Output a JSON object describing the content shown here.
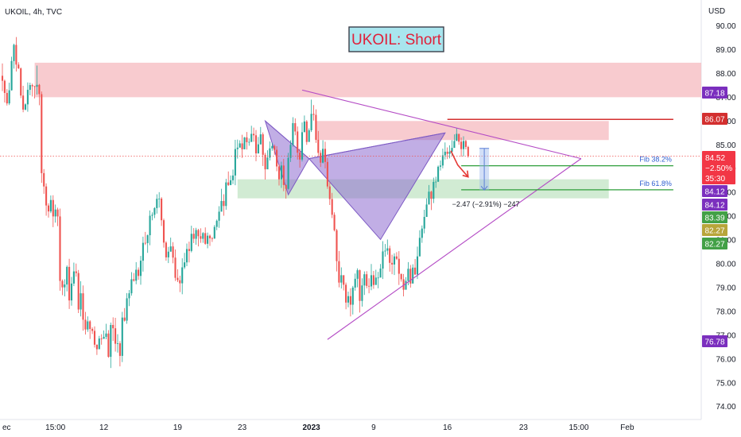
{
  "header": {
    "symbol": "UKOIL, 4h, TVC",
    "currency": "USD"
  },
  "idea_title": "UKOIL: Short",
  "colors": {
    "up": "#26a69a",
    "down": "#ef5350",
    "zone_red": "#f6b9bf",
    "zone_green": "#c6e6c8",
    "pattern": "#8e6bd0",
    "triangle": "#b44bc5",
    "resistance": "#d32f2f",
    "fib": "#2e9e3a",
    "arrow": "#e53935",
    "measure": "#5c7fd6"
  },
  "chart_data": {
    "type": "candlestick",
    "title": "UKOIL: Short",
    "ylabel": "USD",
    "y_ticks": [
      74.0,
      75.0,
      76.0,
      77.0,
      78.0,
      79.0,
      80.0,
      81.0,
      82.0,
      83.0,
      84.0,
      85.0,
      86.0,
      87.0,
      88.0,
      89.0,
      90.0
    ],
    "ylim": [
      73.7,
      91.0
    ],
    "x_ticks": [
      {
        "label": "ec",
        "idx": 0
      },
      {
        "label": "15:00",
        "idx": 23
      },
      {
        "label": "12",
        "idx": 44
      },
      {
        "label": "19",
        "idx": 76
      },
      {
        "label": "23",
        "idx": 104
      },
      {
        "label": "2023",
        "idx": 134
      },
      {
        "label": "9",
        "idx": 161
      },
      {
        "label": "16",
        "idx": 193
      },
      {
        "label": "23",
        "idx": 226
      },
      {
        "label": "15:00",
        "idx": 250
      },
      {
        "label": "Feb",
        "idx": 271
      }
    ],
    "x_count": 308,
    "price_levels": [
      {
        "label": "87.18",
        "value": 87.18,
        "color": "#7b2fbe"
      },
      {
        "label": "86.07",
        "value": 86.07,
        "color": "#d32f2f"
      },
      {
        "label": "84.12",
        "value": 84.12,
        "color": "#7b2fbe"
      },
      {
        "label": "84.12",
        "value": 84.12,
        "color": "#7b2fbe"
      },
      {
        "label": "83.39",
        "value": 83.39,
        "color": "#43a047"
      },
      {
        "label": "82.27",
        "value": 82.27,
        "color": "#b8a53a"
      },
      {
        "label": "82.27",
        "value": 82.27,
        "color": "#43a047"
      },
      {
        "label": "76.78",
        "value": 76.78,
        "color": "#7b2fbe"
      }
    ],
    "last_price": {
      "price": "84.52",
      "change": "−2.50%",
      "countdown": "35:30",
      "value": 84.52
    },
    "zones": [
      {
        "kind": "resistance",
        "from_idx": 14,
        "to_idx": 308,
        "low": 87.0,
        "high": 88.45
      },
      {
        "kind": "resistance",
        "from_idx": 136,
        "to_idx": 263,
        "low": 85.2,
        "high": 86.0
      },
      {
        "kind": "support",
        "from_idx": 102,
        "to_idx": 263,
        "low": 82.75,
        "high": 83.55
      }
    ],
    "resistance_line": {
      "from_idx": 193,
      "to_idx": 291,
      "value": 86.07
    },
    "fib_levels": [
      {
        "label": "Fib 38.2%",
        "value": 84.12,
        "from_idx": 199,
        "to_idx": 291
      },
      {
        "label": "Fib 61.8%",
        "value": 83.11,
        "from_idx": 199,
        "to_idx": 291
      }
    ],
    "triangle": [
      {
        "idx": 130,
        "value": 87.3
      },
      {
        "idx": 251,
        "value": 84.42
      },
      {
        "idx": 141,
        "value": 76.82
      }
    ],
    "pattern_points": [
      {
        "idx": 114,
        "value": 86.0
      },
      {
        "idx": 124,
        "value": 82.9
      },
      {
        "idx": 133,
        "value": 84.42
      },
      {
        "idx": 164,
        "value": 81.02
      },
      {
        "idx": 192,
        "value": 85.5
      }
    ],
    "projection": {
      "from_idx": 209,
      "top": 84.85,
      "bottom": 83.1,
      "label": "−2.47 (−2.91%) −247"
    },
    "candles": [
      [
        87.9,
        87.69,
        88.42,
        87.26
      ],
      [
        87.69,
        87.18,
        87.74,
        86.78
      ],
      [
        87.18,
        86.74,
        87.34,
        86.65
      ],
      [
        86.74,
        87.29,
        87.61,
        86.67
      ],
      [
        87.29,
        88.52,
        88.7,
        87.28
      ],
      [
        88.52,
        89.2,
        89.25,
        88.2
      ],
      [
        89.2,
        88.37,
        89.53,
        88.08
      ],
      [
        88.37,
        88.21,
        88.47,
        88.19
      ],
      [
        88.21,
        87.07,
        88.25,
        86.96
      ],
      [
        87.07,
        86.48,
        87.48,
        86.37
      ],
      [
        86.48,
        86.7,
        86.74,
        86.45
      ],
      [
        86.7,
        87.31,
        87.62,
        86.39
      ],
      [
        87.31,
        87.51,
        87.61,
        87.08
      ],
      [
        87.51,
        87.46,
        87.57,
        87.03
      ],
      [
        87.46,
        87.44,
        87.48,
        86.95
      ],
      [
        87.44,
        87.52,
        88.33,
        87.11
      ],
      [
        87.52,
        87.13,
        87.56,
        86.66
      ],
      [
        87.13,
        83.81,
        87.24,
        83.4
      ],
      [
        83.81,
        83.25,
        83.98,
        82.94
      ],
      [
        83.25,
        82.45,
        83.38,
        82.02
      ],
      [
        82.45,
        82.2,
        82.54,
        81.94
      ],
      [
        82.2,
        82.68,
        82.87,
        82.13
      ],
      [
        82.68,
        81.99,
        82.88,
        81.54
      ],
      [
        81.99,
        82.28,
        82.49,
        81.73
      ],
      [
        82.28,
        81.99,
        82.36,
        81.58
      ],
      [
        81.99,
        79.28,
        82.32,
        78.87
      ],
      [
        79.28,
        79.01,
        79.34,
        78.68
      ],
      [
        79.01,
        79.13,
        79.35,
        78.63
      ],
      [
        79.13,
        79.87,
        79.93,
        78.84
      ],
      [
        79.87,
        78.46,
        80.21,
        78.1
      ],
      [
        78.46,
        79.17,
        79.45,
        78.24
      ],
      [
        79.17,
        79.68,
        80.05,
        79.06
      ],
      [
        79.68,
        79.61,
        80.01,
        79.46
      ],
      [
        79.61,
        78.08,
        79.74,
        77.93
      ],
      [
        78.08,
        78.76,
        79.27,
        77.79
      ],
      [
        78.76,
        77.65,
        79.09,
        77.19
      ],
      [
        77.65,
        77.24,
        77.98,
        77.03
      ],
      [
        77.24,
        77.58,
        77.79,
        77.14
      ],
      [
        77.58,
        77.26,
        77.63,
        76.84
      ],
      [
        77.26,
        77.18,
        77.33,
        77.05
      ],
      [
        77.18,
        76.6,
        77.37,
        76.48
      ],
      [
        76.6,
        76.41,
        76.61,
        76.17
      ],
      [
        76.41,
        76.86,
        76.97,
        76.47
      ],
      [
        76.86,
        76.85,
        77.04,
        76.6
      ],
      [
        76.85,
        76.93,
        77.2,
        76.84
      ],
      [
        76.93,
        77.07,
        77.48,
        76.83
      ],
      [
        77.07,
        76.09,
        77.21,
        76.05
      ],
      [
        76.09,
        77.43,
        77.53,
        75.62
      ],
      [
        77.43,
        77.29,
        77.75,
        76.76
      ],
      [
        77.29,
        76.64,
        77.73,
        76.31
      ],
      [
        76.64,
        76.66,
        77.04,
        76.27
      ],
      [
        76.66,
        76.13,
        76.75,
        75.69
      ],
      [
        76.13,
        77.74,
        77.98,
        75.87
      ],
      [
        77.74,
        77.61,
        78.14,
        77.57
      ],
      [
        77.61,
        78.55,
        78.77,
        77.48
      ],
      [
        78.55,
        78.76,
        78.9,
        78.22
      ],
      [
        78.76,
        79.35,
        79.65,
        78.66
      ],
      [
        79.35,
        79.29,
        79.61,
        79.25
      ],
      [
        79.29,
        79.75,
        80.07,
        79.14
      ],
      [
        79.75,
        79.49,
        79.85,
        79.33
      ],
      [
        79.49,
        80.13,
        80.33,
        79.12
      ],
      [
        80.13,
        80.88,
        81.14,
        79.67
      ],
      [
        80.88,
        80.87,
        81.34,
        80.79
      ],
      [
        80.87,
        81.2,
        81.23,
        80.46
      ],
      [
        81.2,
        82.02,
        82.24,
        80.78
      ],
      [
        82.02,
        82.06,
        82.16,
        81.83
      ],
      [
        82.06,
        82.34,
        82.38,
        81.92
      ],
      [
        82.34,
        82.73,
        82.92,
        82.11
      ],
      [
        82.73,
        82.74,
        83.01,
        82.36
      ],
      [
        82.74,
        81.83,
        82.8,
        81.59
      ],
      [
        81.83,
        80.89,
        81.9,
        80.68
      ],
      [
        80.89,
        80.27,
        80.95,
        80.13
      ],
      [
        80.27,
        80.51,
        80.71,
        80.03
      ],
      [
        80.51,
        80.73,
        81.1,
        80.51
      ],
      [
        80.73,
        80.26,
        80.91,
        80.02
      ],
      [
        80.26,
        79.41,
        80.6,
        79.28
      ],
      [
        79.41,
        79.31,
        79.77,
        79.23
      ],
      [
        79.31,
        79.18,
        79.5,
        78.81
      ],
      [
        79.18,
        79.85,
        80.23,
        78.72
      ],
      [
        79.85,
        80.06,
        80.46,
        79.78
      ],
      [
        80.06,
        80.62,
        80.85,
        79.9
      ],
      [
        80.62,
        80.54,
        80.93,
        80.06
      ],
      [
        80.54,
        81.26,
        81.6,
        80.48
      ],
      [
        81.26,
        81.05,
        81.5,
        80.87
      ],
      [
        81.05,
        81.42,
        81.51,
        80.8
      ],
      [
        81.42,
        81.16,
        81.47,
        80.73
      ],
      [
        81.16,
        81.05,
        81.49,
        80.88
      ],
      [
        81.05,
        81.29,
        81.33,
        80.88
      ],
      [
        81.29,
        80.84,
        81.53,
        80.8
      ],
      [
        80.84,
        81.18,
        81.31,
        80.65
      ],
      [
        81.18,
        81.07,
        81.23,
        80.75
      ],
      [
        81.07,
        81.06,
        81.13,
        80.92
      ],
      [
        81.06,
        81.55,
        81.63,
        81.05
      ],
      [
        81.55,
        81.81,
        81.86,
        81.41
      ],
      [
        81.81,
        82.19,
        82.42,
        81.51
      ],
      [
        82.19,
        82.64,
        83.15,
        82.56
      ],
      [
        82.64,
        82.43,
        82.92,
        82.02
      ],
      [
        82.43,
        83.42,
        83.57,
        82.27
      ],
      [
        83.42,
        83.31,
        83.88,
        83.27
      ],
      [
        83.31,
        83.51,
        83.71,
        83.3
      ],
      [
        83.51,
        83.71,
        83.96,
        83.35
      ],
      [
        83.71,
        84.82,
        85.21,
        83.3
      ],
      [
        84.82,
        84.88,
        85.22,
        84.42
      ],
      [
        84.88,
        85.06,
        85.19,
        84.93
      ],
      [
        85.06,
        84.81,
        85.42,
        84.45
      ],
      [
        84.81,
        85.31,
        85.33,
        84.89
      ],
      [
        85.31,
        85.11,
        85.54,
        84.8
      ],
      [
        85.11,
        85.12,
        85.27,
        84.96
      ],
      [
        85.12,
        85.46,
        85.8,
        85.15
      ],
      [
        85.46,
        85.4,
        85.72,
        85.13
      ],
      [
        85.4,
        84.64,
        85.62,
        84.31
      ],
      [
        84.64,
        85.02,
        85.33,
        84.63
      ],
      [
        85.02,
        85.44,
        85.75,
        85.01
      ],
      [
        85.44,
        84.58,
        85.52,
        84.11
      ],
      [
        84.58,
        83.97,
        84.66,
        83.54
      ],
      [
        83.97,
        84.46,
        84.77,
        84.01
      ],
      [
        84.46,
        84.85,
        85.14,
        84.34
      ],
      [
        84.85,
        84.95,
        85.08,
        84.75
      ],
      [
        84.95,
        84.79,
        85.01,
        84.58
      ],
      [
        84.79,
        84.09,
        84.94,
        83.89
      ],
      [
        84.09,
        83.55,
        84.19,
        83.29
      ],
      [
        83.55,
        84.13,
        84.29,
        83.19
      ],
      [
        84.13,
        83.31,
        84.41,
        83.05
      ],
      [
        83.31,
        83.15,
        83.33,
        82.74
      ],
      [
        83.15,
        84.45,
        84.66,
        83.12
      ],
      [
        84.45,
        85.0,
        85.19,
        84.28
      ],
      [
        85.0,
        85.91,
        86.16,
        84.92
      ],
      [
        85.91,
        85.56,
        86.11,
        85.4
      ],
      [
        85.56,
        84.67,
        85.77,
        84.38
      ],
      [
        84.67,
        84.38,
        84.84,
        84.04
      ],
      [
        84.38,
        85.53,
        85.94,
        84.3
      ],
      [
        85.53,
        85.98,
        86.23,
        85.79
      ],
      [
        85.98,
        85.12,
        86.04,
        85.0
      ],
      [
        85.12,
        85.61,
        85.69,
        85.29
      ],
      [
        85.61,
        86.3,
        86.9,
        85.54
      ],
      [
        86.3,
        86.26,
        86.67,
        86.02
      ],
      [
        86.26,
        85.21,
        86.49,
        85.08
      ],
      [
        85.21,
        84.66,
        85.58,
        84.53
      ],
      [
        84.66,
        84.25,
        84.77,
        84.07
      ],
      [
        84.25,
        84.83,
        85.19,
        84.22
      ],
      [
        84.83,
        84.28,
        85.13,
        84.01
      ],
      [
        84.28,
        83.25,
        84.44,
        83.15
      ],
      [
        83.25,
        82.72,
        83.42,
        82.47
      ],
      [
        82.72,
        82.06,
        82.98,
        81.92
      ],
      [
        82.06,
        81.41,
        82.16,
        81.36
      ],
      [
        81.41,
        80.11,
        81.47,
        79.68
      ],
      [
        80.11,
        79.21,
        80.54,
        79.01
      ],
      [
        79.21,
        79.52,
        79.85,
        78.96
      ],
      [
        79.52,
        79.12,
        79.52,
        78.88
      ],
      [
        79.12,
        78.37,
        79.21,
        78.09
      ],
      [
        78.37,
        78.64,
        78.83,
        78.17
      ],
      [
        78.64,
        78.28,
        78.97,
        77.79
      ],
      [
        78.28,
        79.0,
        79.07,
        77.87
      ],
      [
        79.0,
        79.37,
        79.59,
        78.87
      ],
      [
        79.37,
        79.73,
        79.81,
        79.01
      ],
      [
        79.73,
        78.44,
        79.76,
        77.95
      ],
      [
        78.44,
        79.09,
        79.39,
        78.2
      ],
      [
        79.09,
        79.56,
        79.68,
        78.69
      ],
      [
        79.56,
        79.07,
        79.69,
        78.97
      ],
      [
        79.07,
        79.05,
        79.39,
        78.76
      ],
      [
        79.05,
        79.52,
        79.99,
        78.89
      ],
      [
        79.52,
        79.11,
        79.7,
        78.95
      ],
      [
        79.11,
        79.42,
        79.75,
        79.29
      ],
      [
        79.42,
        79.42,
        79.66,
        78.97
      ],
      [
        79.42,
        79.8,
        79.99,
        79.66
      ],
      [
        79.8,
        80.52,
        80.95,
        79.36
      ],
      [
        80.52,
        80.55,
        80.83,
        80.3
      ],
      [
        80.55,
        80.65,
        81.02,
        80.38
      ],
      [
        80.65,
        80.04,
        80.76,
        79.67
      ],
      [
        80.04,
        79.97,
        80.38,
        79.56
      ],
      [
        79.97,
        80.31,
        80.44,
        79.53
      ],
      [
        80.31,
        80.21,
        80.49,
        80.16
      ],
      [
        80.21,
        79.58,
        80.53,
        79.11
      ],
      [
        79.58,
        79.35,
        79.49,
        79.25
      ],
      [
        79.35,
        78.91,
        79.57,
        78.63
      ],
      [
        78.91,
        79.28,
        79.44,
        78.96
      ],
      [
        79.28,
        79.79,
        80.07,
        79.1
      ],
      [
        79.79,
        79.17,
        79.95,
        79.0
      ],
      [
        79.17,
        79.84,
        79.98,
        79.33
      ],
      [
        79.84,
        79.55,
        80.2,
        79.53
      ],
      [
        79.55,
        80.31,
        80.72,
        79.36
      ],
      [
        80.31,
        81.09,
        81.41,
        80.72
      ],
      [
        81.09,
        81.48,
        81.61,
        80.88
      ],
      [
        81.48,
        81.97,
        82.27,
        81.28
      ],
      [
        81.97,
        82.49,
        82.75,
        82.09
      ],
      [
        82.49,
        83.03,
        83.31,
        82.95
      ],
      [
        83.03,
        82.73,
        83.07,
        82.26
      ],
      [
        82.73,
        83.44,
        83.62,
        82.55
      ],
      [
        83.44,
        83.45,
        83.66,
        83.19
      ],
      [
        83.45,
        84.08,
        84.13,
        83.44
      ],
      [
        84.08,
        84.13,
        84.34,
        83.92
      ],
      [
        84.13,
        84.56,
        84.84,
        84.01
      ],
      [
        84.56,
        84.71,
        85.1,
        84.38
      ],
      [
        84.71,
        84.62,
        84.89,
        84.4
      ],
      [
        84.62,
        84.71,
        84.98,
        84.43
      ],
      [
        84.71,
        84.87,
        85.19,
        84.55
      ],
      [
        84.87,
        85.16,
        85.44,
        84.94
      ],
      [
        85.16,
        85.46,
        85.7,
        85.18
      ],
      [
        85.46,
        85.13,
        85.44,
        85.0
      ],
      [
        85.13,
        84.82,
        85.31,
        84.5
      ],
      [
        84.82,
        85.16,
        85.36,
        84.52
      ],
      [
        85.16,
        84.91,
        85.21,
        84.81
      ],
      [
        84.91,
        84.52,
        84.96,
        84.46
      ]
    ]
  }
}
